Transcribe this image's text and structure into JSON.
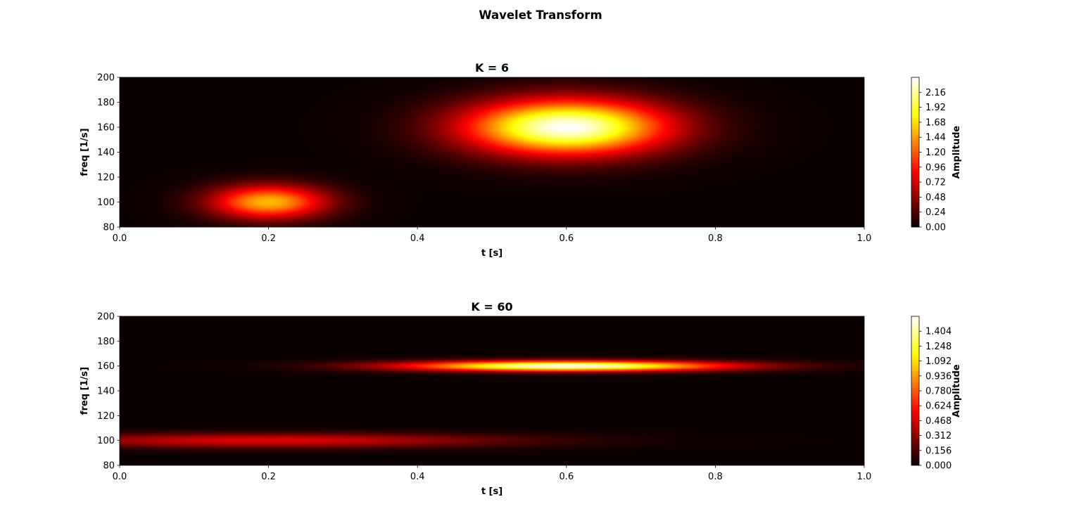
{
  "figure": {
    "title": "Wavelet Transform"
  },
  "colormap": {
    "name": "hot",
    "stops": [
      "#0b0000",
      "#ff0000",
      "#ffff00",
      "#ffffff"
    ]
  },
  "chart_data": [
    {
      "type": "heatmap",
      "title": "K = 6",
      "xlabel": "t [s]",
      "ylabel": "freq [1/s]",
      "xlim": [
        0.0,
        1.0
      ],
      "ylim": [
        80,
        200
      ],
      "xticks": [
        0.0,
        0.2,
        0.4,
        0.6,
        0.8,
        1.0
      ],
      "xtick_labels": [
        "0.0",
        "0.2",
        "0.4",
        "0.6",
        "0.8",
        "1.0"
      ],
      "yticks": [
        80,
        100,
        120,
        140,
        160,
        180,
        200
      ],
      "ytick_labels": [
        "80",
        "100",
        "120",
        "140",
        "160",
        "180",
        "200"
      ],
      "colorbar": {
        "label": "Amplitude",
        "range": [
          0.0,
          2.4
        ],
        "ticks": [
          0.0,
          0.24,
          0.48,
          0.72,
          0.96,
          1.2,
          1.44,
          1.68,
          1.92,
          2.16
        ],
        "tick_labels": [
          "0.00",
          "0.24",
          "0.48",
          "0.72",
          "0.96",
          "1.20",
          "1.44",
          "1.68",
          "1.92",
          "2.16"
        ]
      },
      "components": [
        {
          "t": 0.2,
          "freq": 100,
          "amplitude": 1.55,
          "sigma_t": 0.055,
          "sigma_freq": 9.5
        },
        {
          "t": 0.6,
          "freq": 160,
          "amplitude": 2.4,
          "sigma_t": 0.095,
          "sigma_freq": 15.5
        }
      ]
    },
    {
      "type": "heatmap",
      "title": "K = 60",
      "xlabel": "t [s]",
      "ylabel": "freq [1/s]",
      "xlim": [
        0.0,
        1.0
      ],
      "ylim": [
        80,
        200
      ],
      "xticks": [
        0.0,
        0.2,
        0.4,
        0.6,
        0.8,
        1.0
      ],
      "xtick_labels": [
        "0.0",
        "0.2",
        "0.4",
        "0.6",
        "0.8",
        "1.0"
      ],
      "yticks": [
        80,
        100,
        120,
        140,
        160,
        180,
        200
      ],
      "ytick_labels": [
        "80",
        "100",
        "120",
        "140",
        "160",
        "180",
        "200"
      ],
      "colorbar": {
        "label": "Amplitude",
        "range": [
          0.0,
          1.56
        ],
        "ticks": [
          0.0,
          0.156,
          0.312,
          0.468,
          0.624,
          0.78,
          0.936,
          1.092,
          1.248,
          1.404
        ],
        "tick_labels": [
          "0.000",
          "0.156",
          "0.312",
          "0.468",
          "0.624",
          "0.780",
          "0.936",
          "1.092",
          "1.248",
          "1.404"
        ]
      },
      "components": [
        {
          "t": 0.2,
          "freq": 100,
          "amplitude": 0.5,
          "sigma_t": 0.22,
          "sigma_freq": 4.0
        },
        {
          "t": 0.6,
          "freq": 160,
          "amplitude": 1.56,
          "sigma_t": 0.15,
          "sigma_freq": 2.9
        }
      ]
    }
  ]
}
